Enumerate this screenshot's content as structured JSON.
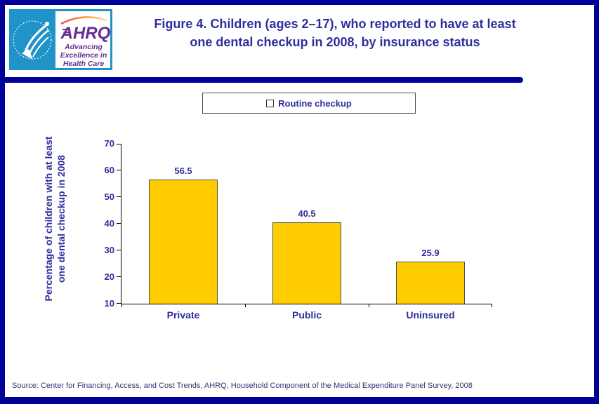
{
  "colors": {
    "frame_navy": "#000099",
    "title_blue": "#2E2E9E",
    "bar_yellow": "#FFCC00",
    "hhs_logo_blue": "#2093C8",
    "ahrq_purple": "#662D91",
    "source_text": "#333370"
  },
  "header": {
    "logo": {
      "ahrq_acronym": "AHRQ",
      "tagline_line1": "Advancing",
      "tagline_line2": "Excellence in",
      "tagline_line3": "Health Care"
    },
    "title_line1": "Figure 4. Children (ages 2–17), who reported to have at least",
    "title_line2": "one dental checkup in 2008, by insurance status"
  },
  "legend": {
    "label": "Routine checkup"
  },
  "chart_data": {
    "type": "bar",
    "title": "Figure 4. Children (ages 2–17), who reported to have at least one dental checkup in 2008, by insurance status",
    "categories": [
      "Private",
      "Public",
      "Uninsured"
    ],
    "values": [
      56.5,
      40.5,
      25.9
    ],
    "series": [
      {
        "name": "Routine checkup",
        "values": [
          56.5,
          40.5,
          25.9
        ]
      }
    ],
    "xlabel": "",
    "ylabel": "Percentage of children with at least one dental checkup in 2008",
    "ylabel_line1": "Percentage of children with at least",
    "ylabel_line2": "one dental checkup in 2008",
    "ylim": [
      10,
      70
    ],
    "yticks": [
      10,
      20,
      30,
      40,
      50,
      60,
      70
    ],
    "grid": false,
    "legend_position": "top-center",
    "bar_color": "#FFCC00"
  },
  "footer": {
    "source": "Source: Center for Financing, Access, and Cost Trends, AHRQ, Household Component of the Medical Expenditure Panel Survey, 2008"
  }
}
